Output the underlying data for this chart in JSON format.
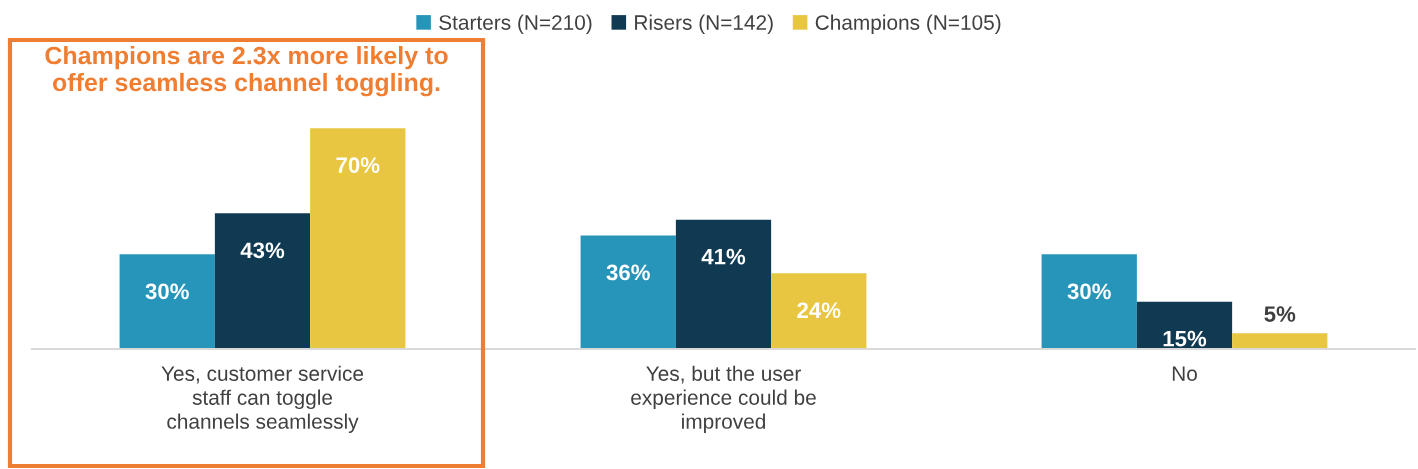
{
  "chart_data": {
    "type": "bar",
    "categories": [
      "Yes, customer service staff can toggle channels seamlessly",
      "Yes, but the user experience could be improved",
      "No"
    ],
    "series": [
      {
        "name": "Starters (N=210)",
        "color": "#2795ba",
        "values": [
          30,
          36,
          30
        ],
        "value_labels": [
          "30%",
          "36%",
          "30%"
        ]
      },
      {
        "name": "Risers (N=142)",
        "color": "#0f3a52",
        "values": [
          43,
          41,
          15
        ],
        "value_labels": [
          "43%",
          "41%",
          "15%"
        ]
      },
      {
        "name": "Champions (N=105)",
        "color": "#e8c642",
        "values": [
          70,
          24,
          5
        ],
        "value_labels": [
          "70%",
          "24%",
          "5%"
        ]
      }
    ],
    "annotations": [
      "Champions are 2.3x more likely to offer seamless channel toggling."
    ],
    "legend": "top",
    "tick_labels": "x"
  }
}
